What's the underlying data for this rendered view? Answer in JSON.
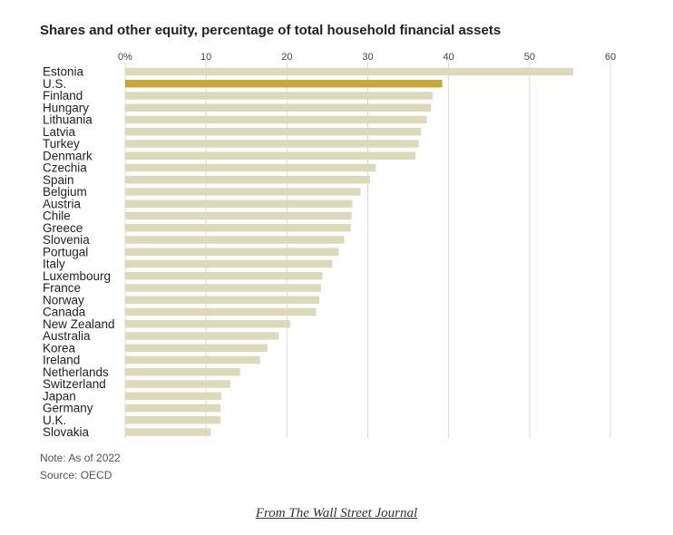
{
  "title": "Shares and other equity, percentage of total household financial assets",
  "note": "Note: As of 2022",
  "source": "Source: OECD",
  "credit": "From The Wall Street Journal",
  "colors": {
    "bar": "#dcdabb",
    "highlight": "#c6a93a",
    "grid": "#dcdcdc",
    "text": "#222222"
  },
  "chart_data": {
    "type": "bar",
    "orientation": "horizontal",
    "title": "Shares and other equity, percentage of total household financial assets",
    "categories": [
      "Estonia",
      "U.S.",
      "Finland",
      "Hungary",
      "Lithuania",
      "Latvia",
      "Turkey",
      "Denmark",
      "Czechia",
      "Spain",
      "Belgium",
      "Austria",
      "Chile",
      "Greece",
      "Slovenia",
      "Portugal",
      "Italy",
      "Luxembourg",
      "France",
      "Norway",
      "Canada",
      "New Zealand",
      "Australia",
      "Korea",
      "Ireland",
      "Netherlands",
      "Switzerland",
      "Japan",
      "Germany",
      "U.K.",
      "Slovakia"
    ],
    "values": [
      55.4,
      39.2,
      38.0,
      37.8,
      37.3,
      36.6,
      36.3,
      35.9,
      31.0,
      30.3,
      29.1,
      28.1,
      28.0,
      27.9,
      27.1,
      26.4,
      25.6,
      24.4,
      24.2,
      24.0,
      23.6,
      20.4,
      19.0,
      17.6,
      16.7,
      14.2,
      13.0,
      11.9,
      11.8,
      11.8,
      10.6
    ],
    "highlight": "U.S.",
    "xticks": [
      "0%",
      "10",
      "20",
      "30",
      "40",
      "50",
      "60"
    ],
    "xtick_values": [
      0,
      10,
      20,
      30,
      40,
      50,
      60
    ],
    "xlim": [
      0,
      60
    ],
    "grid": true
  }
}
